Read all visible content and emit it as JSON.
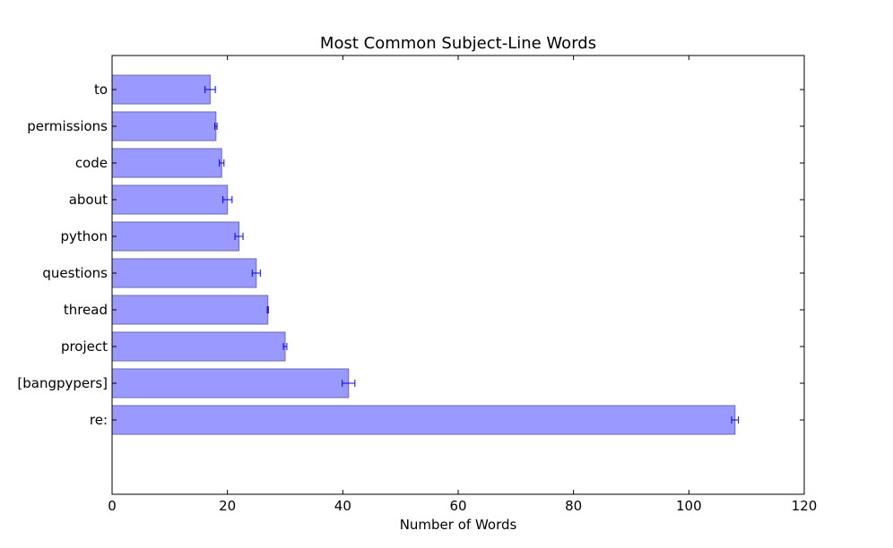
{
  "chart_data": {
    "type": "bar",
    "orientation": "horizontal",
    "title": "Most Common Subject-Line Words",
    "xlabel": "Number of Words",
    "ylabel": "",
    "xlim": [
      0,
      120
    ],
    "xticks": [
      0,
      20,
      40,
      60,
      80,
      100,
      120
    ],
    "grid": false,
    "categories": [
      "re:",
      "[bangpypers]",
      "project",
      "thread",
      "questions",
      "python",
      "about",
      "code",
      "permissions",
      "to"
    ],
    "values": [
      108,
      41,
      30,
      27,
      25,
      22,
      20,
      19,
      18,
      17
    ],
    "errors": [
      0.6,
      1.1,
      0.3,
      0.1,
      0.7,
      0.7,
      0.8,
      0.4,
      0.2,
      0.9
    ],
    "colors": {
      "bar_fill": "#9999ff",
      "bar_edge": "#6a6ab0",
      "error_bar": "#0000ff",
      "axis": "#000000"
    }
  }
}
